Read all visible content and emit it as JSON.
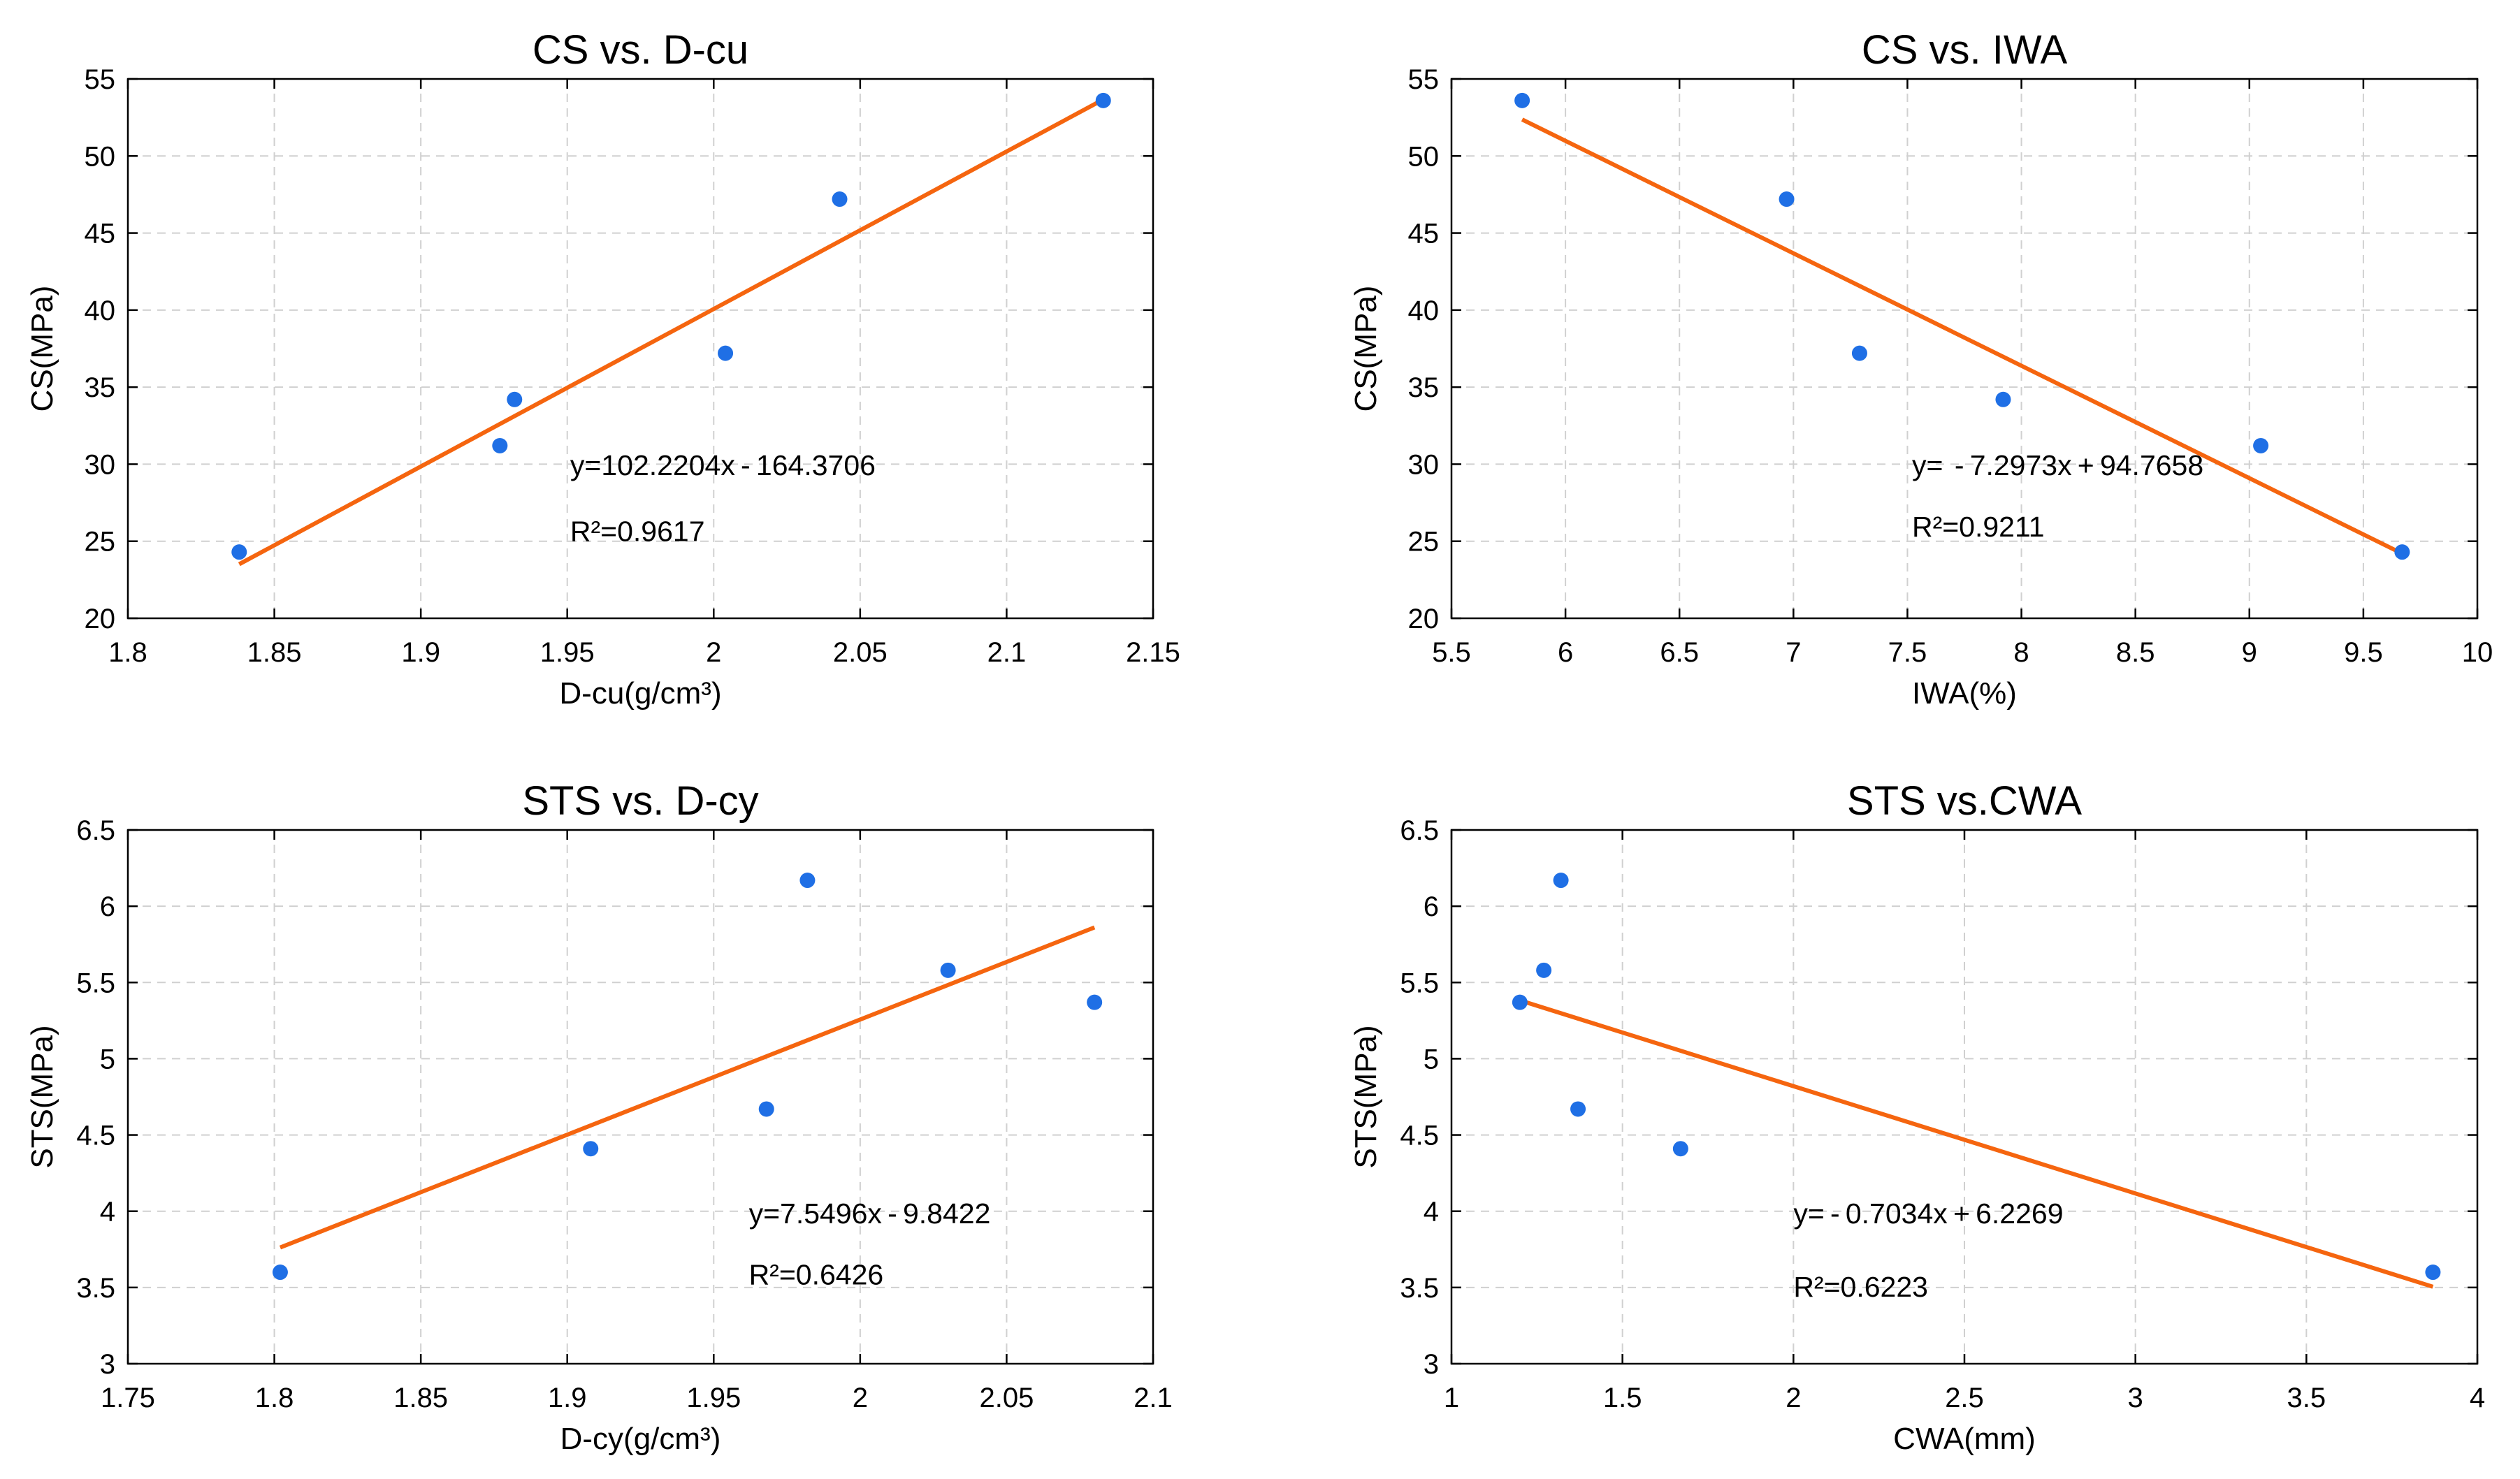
{
  "colors": {
    "points": "#1f6fe5",
    "fit": "#f5650f"
  },
  "chart_data": [
    {
      "type": "scatter",
      "title": "CS vs. D-cu",
      "xlabel": "D-cu(g/cm³)",
      "ylabel": "CS(MPa)",
      "xlim": [
        1.8,
        2.15
      ],
      "ylim": [
        20,
        55
      ],
      "xticks": [
        1.8,
        1.85,
        1.9,
        1.95,
        2,
        2.05,
        2.1,
        2.15
      ],
      "xtick_labels": [
        "1.8",
        "1.85",
        "1.9",
        "1.95",
        "2",
        "2.05",
        "2.1",
        "2.15"
      ],
      "yticks": [
        20,
        25,
        30,
        35,
        40,
        45,
        50,
        55
      ],
      "ytick_labels": [
        "20",
        "25",
        "30",
        "35",
        "40",
        "45",
        "50",
        "55"
      ],
      "grid": true,
      "points": [
        {
          "x": 1.838,
          "y": 24.3
        },
        {
          "x": 1.927,
          "y": 31.2
        },
        {
          "x": 1.932,
          "y": 34.2
        },
        {
          "x": 2.004,
          "y": 37.2
        },
        {
          "x": 2.043,
          "y": 47.2
        },
        {
          "x": 2.133,
          "y": 53.6
        }
      ],
      "fit_line": {
        "x": [
          1.838,
          2.133
        ],
        "slope": 102.2204,
        "intercept": -164.3706
      },
      "equation_text": "y=102.2204x - 164.3706",
      "r2_text": "R²=0.9617",
      "equation_pos": {
        "x": 1.951,
        "y": 29.3
      },
      "r2_pos": {
        "x": 1.951,
        "y": 25.0
      }
    },
    {
      "type": "scatter",
      "title": "CS vs. IWA",
      "xlabel": "IWA(%)",
      "ylabel": "CS(MPa)",
      "xlim": [
        5.5,
        10
      ],
      "ylim": [
        20,
        55
      ],
      "xticks": [
        5.5,
        6,
        6.5,
        7,
        7.5,
        8,
        8.5,
        9,
        9.5,
        10
      ],
      "xtick_labels": [
        "5.5",
        "6",
        "6.5",
        "7",
        "7.5",
        "8",
        "8.5",
        "9",
        "9.5",
        "10"
      ],
      "yticks": [
        20,
        25,
        30,
        35,
        40,
        45,
        50,
        55
      ],
      "ytick_labels": [
        "20",
        "25",
        "30",
        "35",
        "40",
        "45",
        "50",
        "55"
      ],
      "grid": true,
      "points": [
        {
          "x": 5.81,
          "y": 53.6
        },
        {
          "x": 6.97,
          "y": 47.2
        },
        {
          "x": 7.29,
          "y": 37.2
        },
        {
          "x": 7.92,
          "y": 34.2
        },
        {
          "x": 9.05,
          "y": 31.2
        },
        {
          "x": 9.67,
          "y": 24.3
        }
      ],
      "fit_line": {
        "x": [
          5.81,
          9.67
        ],
        "slope": -7.2973,
        "intercept": 94.7658
      },
      "equation_text": "y=  - 7.2973x + 94.7658",
      "r2_text": "R²=0.9211",
      "equation_pos": {
        "x": 7.52,
        "y": 29.3
      },
      "r2_pos": {
        "x": 7.52,
        "y": 25.3
      }
    },
    {
      "type": "scatter",
      "title": "STS vs. D-cy",
      "xlabel": "D-cy(g/cm³)",
      "ylabel": "STS(MPa)",
      "xlim": [
        1.75,
        2.1
      ],
      "ylim": [
        3,
        6.5
      ],
      "xticks": [
        1.75,
        1.8,
        1.85,
        1.9,
        1.95,
        2,
        2.05,
        2.1
      ],
      "xtick_labels": [
        "1.75",
        "1.8",
        "1.85",
        "1.9",
        "1.95",
        "2",
        "2.05",
        "2.1"
      ],
      "yticks": [
        3,
        3.5,
        4,
        4.5,
        5,
        5.5,
        6,
        6.5
      ],
      "ytick_labels": [
        "3",
        "3.5",
        "4",
        "4.5",
        "5",
        "5.5",
        "6",
        "6.5"
      ],
      "grid": true,
      "points": [
        {
          "x": 1.802,
          "y": 3.6
        },
        {
          "x": 1.908,
          "y": 4.41
        },
        {
          "x": 1.968,
          "y": 4.67
        },
        {
          "x": 1.982,
          "y": 6.17
        },
        {
          "x": 2.03,
          "y": 5.58
        },
        {
          "x": 2.08,
          "y": 5.37
        }
      ],
      "fit_line": {
        "x": [
          1.802,
          2.08
        ],
        "slope": 7.5496,
        "intercept": -9.8422
      },
      "equation_text": "y=7.5496x - 9.8422",
      "r2_text": "R²=0.6426",
      "equation_pos": {
        "x": 1.962,
        "y": 3.92
      },
      "r2_pos": {
        "x": 1.962,
        "y": 3.52
      }
    },
    {
      "type": "scatter",
      "title": "STS vs.CWA",
      "xlabel": "CWA(mm)",
      "ylabel": "STS(MPa)",
      "xlim": [
        1,
        4
      ],
      "ylim": [
        3,
        6.5
      ],
      "xticks": [
        1,
        1.5,
        2,
        2.5,
        3,
        3.5,
        4
      ],
      "xtick_labels": [
        "1",
        "1.5",
        "2",
        "2.5",
        "3",
        "3.5",
        "4"
      ],
      "yticks": [
        3,
        3.5,
        4,
        4.5,
        5,
        5.5,
        6,
        6.5
      ],
      "ytick_labels": [
        "3",
        "3.5",
        "4",
        "4.5",
        "5",
        "5.5",
        "6",
        "6.5"
      ],
      "grid": true,
      "points": [
        {
          "x": 1.2,
          "y": 5.37
        },
        {
          "x": 1.27,
          "y": 5.58
        },
        {
          "x": 1.32,
          "y": 6.17
        },
        {
          "x": 1.37,
          "y": 4.67
        },
        {
          "x": 1.67,
          "y": 4.41
        },
        {
          "x": 3.87,
          "y": 3.6
        }
      ],
      "fit_line": {
        "x": [
          1.2,
          3.87
        ],
        "slope": -0.7034,
        "intercept": 6.2269
      },
      "equation_text": "y= - 0.7034x + 6.2269",
      "r2_text": "R²=0.6223",
      "equation_pos": {
        "x": 2.0,
        "y": 3.92
      },
      "r2_pos": {
        "x": 2.0,
        "y": 3.44
      }
    }
  ]
}
